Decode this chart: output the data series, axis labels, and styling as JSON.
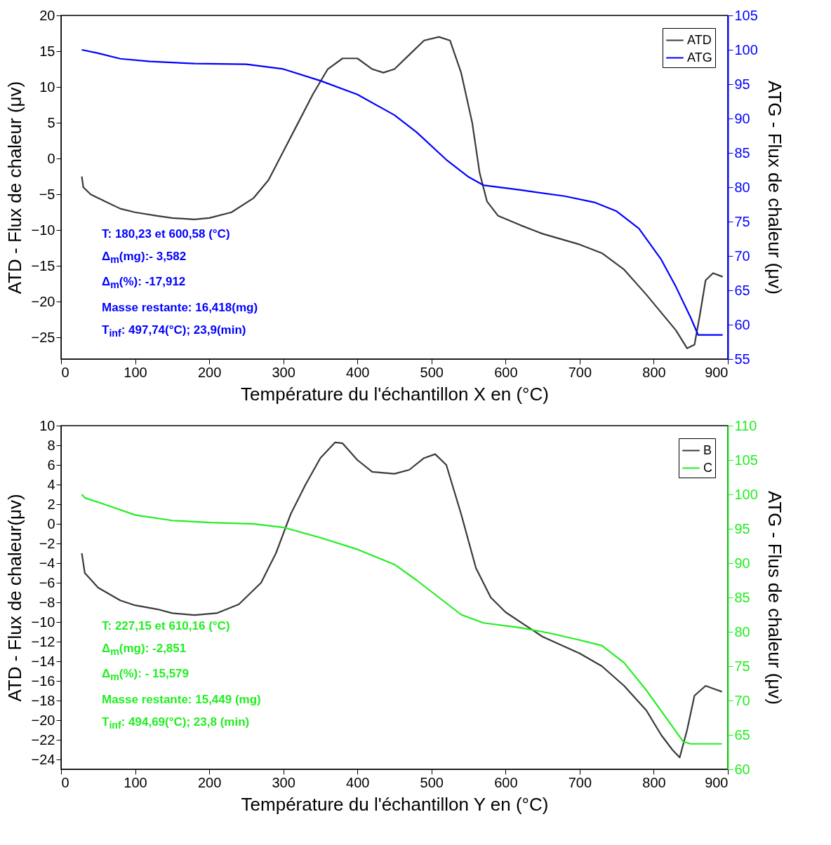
{
  "chart_data": [
    {
      "type": "line",
      "xlabel": "Température du l'échantillon X en (°C)",
      "ylabel": "ATD - Flux de chaleur (μv)",
      "y2label": "ATG - Flux de chaleur (μv)",
      "xlim": [
        0,
        900
      ],
      "xticks": [
        0,
        100,
        200,
        300,
        400,
        500,
        600,
        700,
        800,
        900
      ],
      "ylim": [
        -28,
        20
      ],
      "yticks": [
        -25,
        -20,
        -15,
        -10,
        -5,
        0,
        5,
        10,
        15,
        20
      ],
      "y2lim": [
        55,
        105
      ],
      "y2ticks": [
        55,
        60,
        65,
        70,
        75,
        80,
        85,
        90,
        95,
        100,
        105
      ],
      "legend": "top right",
      "annotations": [
        "T: 180,23 et 600,58 (°C)",
        "Δ$_{m}$(mg):- 3,582",
        "Δ$_{m}$(%): -17,912",
        "Masse restante: 16,418(mg)",
        "T$_{inf}$: 497,74(°C); 23,9(min)"
      ],
      "series": [
        {
          "name": "ATD",
          "color": "#3a3a3a",
          "x": [
            28,
            30,
            40,
            60,
            80,
            100,
            130,
            150,
            180,
            200,
            230,
            260,
            280,
            300,
            320,
            340,
            360,
            380,
            400,
            420,
            435,
            450,
            470,
            490,
            510,
            525,
            540,
            555,
            565,
            575,
            590,
            620,
            650,
            700,
            730,
            760,
            790,
            810,
            830,
            845,
            855,
            862,
            870,
            880,
            893
          ],
          "values": [
            -2.5,
            -4,
            -5,
            -6,
            -7,
            -7.5,
            -8,
            -8.3,
            -8.5,
            -8.3,
            -7.5,
            -5.5,
            -3,
            1,
            5,
            9,
            12.5,
            14,
            14,
            12.5,
            12,
            12.5,
            14.5,
            16.5,
            17,
            16.5,
            12,
            5,
            -2,
            -6,
            -8,
            -9.3,
            -10.5,
            -12,
            -13.2,
            -15.5,
            -19,
            -21.5,
            -24,
            -26.5,
            -26,
            -22,
            -17,
            -16,
            -16.5
          ]
        },
        {
          "name": "ATG",
          "color": "#0000ff",
          "axis": "y2",
          "x": [
            28,
            50,
            80,
            120,
            180,
            250,
            300,
            350,
            400,
            450,
            480,
            520,
            550,
            570,
            620,
            680,
            720,
            750,
            780,
            810,
            830,
            850,
            860,
            893
          ],
          "values": [
            100,
            99.5,
            98.7,
            98.3,
            98,
            97.9,
            97.2,
            95.5,
            93.5,
            90.5,
            88,
            84,
            81.5,
            80.3,
            79.6,
            78.7,
            77.8,
            76.5,
            74,
            69.5,
            65.5,
            61,
            58.5,
            58.5
          ]
        }
      ]
    },
    {
      "type": "line",
      "xlabel": "Température du l'échantillon Y en (°C)",
      "ylabel": "ATD - Flux de chaleur(μv)",
      "y2label": "ATG - Flus de chaleur (μv)",
      "xlim": [
        0,
        900
      ],
      "xticks": [
        0,
        100,
        200,
        300,
        400,
        500,
        600,
        700,
        800,
        900
      ],
      "ylim": [
        -25,
        10
      ],
      "yticks": [
        -24,
        -22,
        -20,
        -18,
        -16,
        -14,
        -12,
        -10,
        -8,
        -6,
        -4,
        -2,
        0,
        2,
        4,
        6,
        8,
        10
      ],
      "y2lim": [
        60,
        110
      ],
      "y2ticks": [
        60,
        65,
        70,
        75,
        80,
        85,
        90,
        95,
        100,
        105,
        110
      ],
      "legend": "top right",
      "annotations": [
        "T: 227,15 et 610,16 (°C)",
        "Δ$_{m}$(mg): -2,851",
        "Δ$_{m}$(%): - 15,579",
        "Masse restante: 15,449 (mg)",
        "T$_{inf}$: 494,69(°C); 23,8 (min)"
      ],
      "series": [
        {
          "name": "B",
          "color": "#3a3a3a",
          "x": [
            28,
            32,
            50,
            80,
            100,
            130,
            150,
            180,
            210,
            240,
            270,
            290,
            310,
            330,
            350,
            370,
            380,
            400,
            420,
            450,
            470,
            490,
            505,
            520,
            540,
            560,
            580,
            600,
            650,
            700,
            730,
            760,
            790,
            810,
            825,
            835,
            845,
            855,
            870,
            892
          ],
          "values": [
            -3,
            -5,
            -6.5,
            -7.8,
            -8.3,
            -8.7,
            -9.1,
            -9.3,
            -9.1,
            -8.2,
            -6,
            -3,
            1,
            4,
            6.7,
            8.3,
            8.2,
            6.5,
            5.3,
            5.1,
            5.5,
            6.7,
            7.1,
            6,
            1,
            -4.5,
            -7.5,
            -9,
            -11.5,
            -13.2,
            -14.5,
            -16.5,
            -19,
            -21.5,
            -23,
            -23.8,
            -21,
            -17.5,
            -16.5,
            -17.1
          ]
        },
        {
          "name": "C",
          "color": "#22ee22",
          "axis": "y2",
          "x": [
            28,
            32,
            60,
            100,
            150,
            200,
            260,
            300,
            350,
            400,
            450,
            480,
            510,
            540,
            570,
            620,
            660,
            700,
            730,
            760,
            790,
            820,
            840,
            850,
            892
          ],
          "values": [
            100,
            99.5,
            98.5,
            97,
            96.2,
            95.9,
            95.7,
            95.2,
            93.7,
            92,
            89.8,
            87.5,
            85,
            82.5,
            81.3,
            80.6,
            79.8,
            78.8,
            78,
            75.5,
            71.5,
            67,
            64,
            63.7,
            63.7
          ]
        }
      ]
    }
  ]
}
